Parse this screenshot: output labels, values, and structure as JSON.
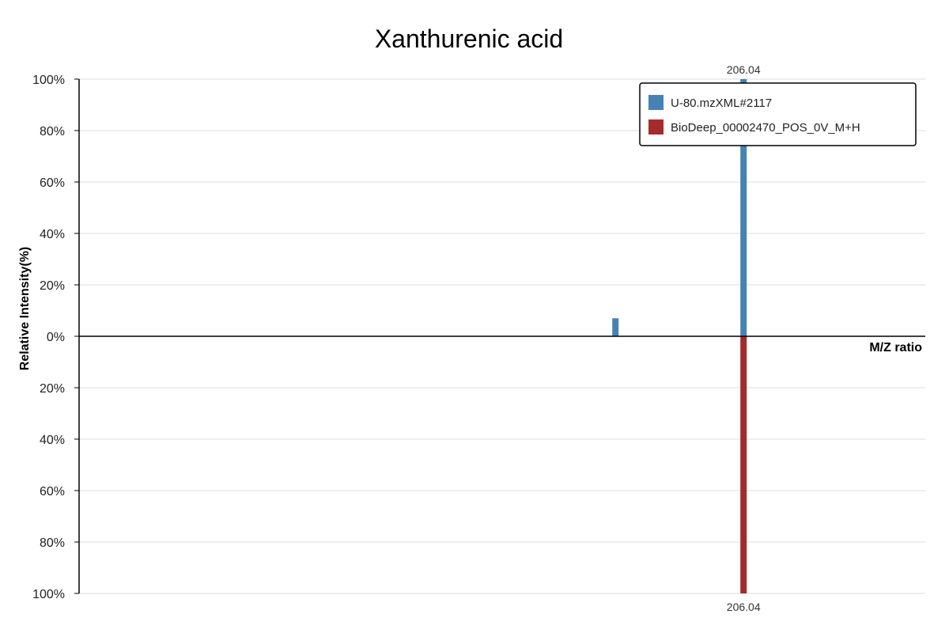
{
  "chart_data": {
    "type": "bar",
    "title": "Xanthurenic acid",
    "xlabel": "M/Z ratio",
    "ylabel": "Relative Intensity(%)",
    "y_ticks_top": [
      "100%",
      "80%",
      "60%",
      "40%",
      "20%",
      "0%"
    ],
    "y_ticks_bottom": [
      "20%",
      "40%",
      "60%",
      "80%",
      "100%"
    ],
    "ylim": [
      -100,
      100
    ],
    "xlim": [
      155,
      220
    ],
    "legend_position": "top-right",
    "series": [
      {
        "name": "U-80.mzXML#2117",
        "color": "#4682b4",
        "direction": "up",
        "peaks": [
          {
            "mz": 196.2,
            "intensity": 7,
            "label": ""
          },
          {
            "mz": 206.04,
            "intensity": 100,
            "label": "206.04"
          }
        ]
      },
      {
        "name": "BioDeep_00002470_POS_0V_M+H",
        "color": "#a52a2a",
        "direction": "down",
        "peaks": [
          {
            "mz": 206.04,
            "intensity": 100,
            "label": "206.04"
          }
        ]
      }
    ]
  }
}
